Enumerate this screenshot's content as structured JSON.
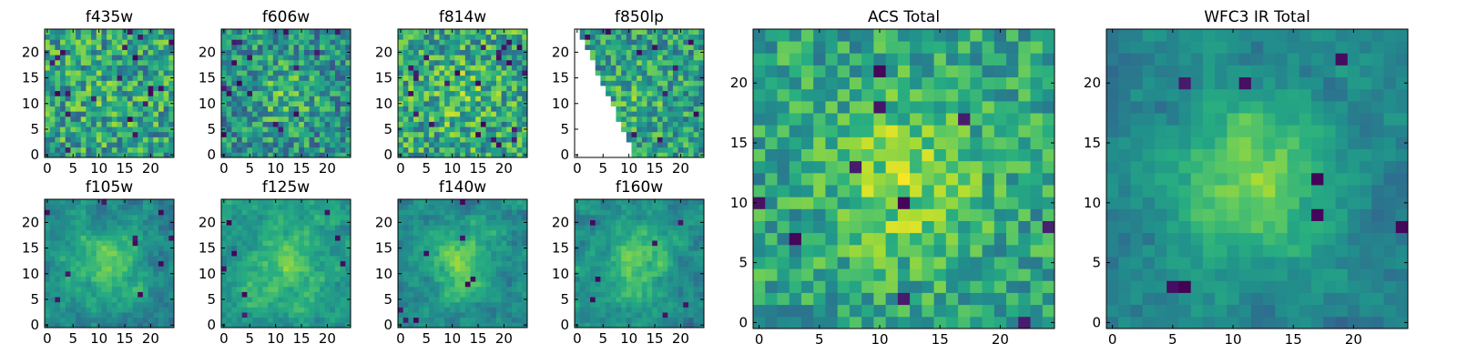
{
  "figure": {
    "description_panels": 10,
    "colormap": "viridis"
  },
  "chart_data": [
    {
      "type": "heatmap",
      "title": "f435w",
      "xlim": [
        0,
        24
      ],
      "ylim": [
        0,
        24
      ],
      "xticks": [
        0,
        5,
        10,
        15,
        20
      ],
      "yticks": [
        0,
        5,
        10,
        15,
        20
      ],
      "grid_size": 25,
      "seed": 11,
      "blob": 0.05,
      "noise": 0.55,
      "smooth": 0,
      "base": 0.58,
      "dark_spots": 20,
      "masked_triangle": false
    },
    {
      "type": "heatmap",
      "title": "f606w",
      "xlim": [
        0,
        24
      ],
      "ylim": [
        0,
        24
      ],
      "xticks": [
        0,
        5,
        10,
        15,
        20
      ],
      "yticks": [
        0,
        5,
        10,
        15,
        20
      ],
      "grid_size": 25,
      "seed": 23,
      "blob": 0.18,
      "noise": 0.5,
      "smooth": 0,
      "base": 0.5,
      "dark_spots": 16,
      "masked_triangle": false
    },
    {
      "type": "heatmap",
      "title": "f814w",
      "xlim": [
        0,
        24
      ],
      "ylim": [
        0,
        24
      ],
      "xticks": [
        0,
        5,
        10,
        15,
        20
      ],
      "yticks": [
        0,
        5,
        10,
        15,
        20
      ],
      "grid_size": 25,
      "seed": 37,
      "blob": 0.1,
      "noise": 0.55,
      "smooth": 0,
      "base": 0.6,
      "dark_spots": 24,
      "masked_triangle": false
    },
    {
      "type": "heatmap",
      "title": "f850lp",
      "xlim": [
        0,
        24
      ],
      "ylim": [
        0,
        24
      ],
      "xticks": [
        0,
        5,
        10,
        15,
        20
      ],
      "yticks": [
        0,
        5,
        10,
        15,
        20
      ],
      "grid_size": 25,
      "seed": 41,
      "blob": 0.1,
      "noise": 0.5,
      "smooth": 0,
      "base": 0.55,
      "dark_spots": 12,
      "masked_triangle": true
    },
    {
      "type": "heatmap",
      "title": "f105w",
      "xlim": [
        0,
        24
      ],
      "ylim": [
        0,
        24
      ],
      "xticks": [
        0,
        5,
        10,
        15,
        20
      ],
      "yticks": [
        0,
        5,
        10,
        15,
        20
      ],
      "grid_size": 25,
      "seed": 53,
      "blob": 0.28,
      "noise": 0.45,
      "smooth": 1,
      "base": 0.48,
      "dark_spots": 10,
      "masked_triangle": false
    },
    {
      "type": "heatmap",
      "title": "f125w",
      "xlim": [
        0,
        24
      ],
      "ylim": [
        0,
        24
      ],
      "xticks": [
        0,
        5,
        10,
        15,
        20
      ],
      "yticks": [
        0,
        5,
        10,
        15,
        20
      ],
      "grid_size": 25,
      "seed": 67,
      "blob": 0.22,
      "noise": 0.45,
      "smooth": 1,
      "base": 0.55,
      "dark_spots": 8,
      "masked_triangle": false
    },
    {
      "type": "heatmap",
      "title": "f140w",
      "xlim": [
        0,
        24
      ],
      "ylim": [
        0,
        24
      ],
      "xticks": [
        0,
        5,
        10,
        15,
        20
      ],
      "yticks": [
        0,
        5,
        10,
        15,
        20
      ],
      "grid_size": 25,
      "seed": 71,
      "blob": 0.3,
      "noise": 0.42,
      "smooth": 1,
      "base": 0.47,
      "dark_spots": 8,
      "masked_triangle": false
    },
    {
      "type": "heatmap",
      "title": "f160w",
      "xlim": [
        0,
        24
      ],
      "ylim": [
        0,
        24
      ],
      "xticks": [
        0,
        5,
        10,
        15,
        20
      ],
      "yticks": [
        0,
        5,
        10,
        15,
        20
      ],
      "grid_size": 25,
      "seed": 83,
      "blob": 0.32,
      "noise": 0.4,
      "smooth": 1,
      "base": 0.48,
      "dark_spots": 7,
      "masked_triangle": false
    },
    {
      "type": "heatmap",
      "title": "ACS Total",
      "xlim": [
        0,
        24
      ],
      "ylim": [
        0,
        24
      ],
      "xticks": [
        0,
        5,
        10,
        15,
        20
      ],
      "yticks": [
        0,
        5,
        10,
        15,
        20
      ],
      "grid_size": 25,
      "seed": 97,
      "blob": 0.25,
      "noise": 0.4,
      "smooth": 0,
      "base": 0.58,
      "dark_spots": 10,
      "masked_triangle": false
    },
    {
      "type": "heatmap",
      "title": "WFC3 IR Total",
      "xlim": [
        0,
        24
      ],
      "ylim": [
        0,
        24
      ],
      "xticks": [
        0,
        5,
        10,
        15,
        20
      ],
      "yticks": [
        0,
        5,
        10,
        15,
        20
      ],
      "grid_size": 25,
      "seed": 101,
      "blob": 0.38,
      "noise": 0.3,
      "smooth": 1,
      "base": 0.45,
      "dark_spots": 8,
      "masked_triangle": false
    }
  ]
}
